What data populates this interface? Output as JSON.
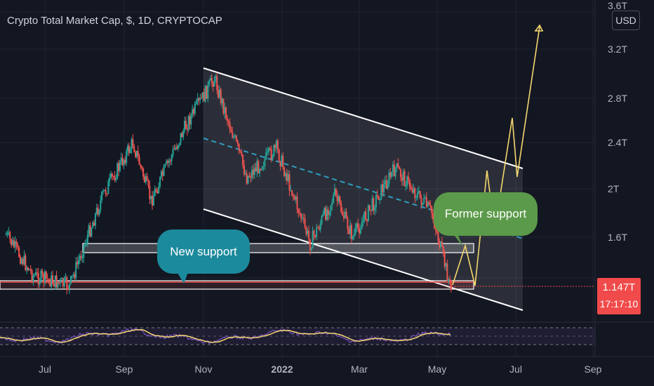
{
  "header": {
    "title": "Crypto Total Market Cap, $, 1D, CRYPTOCAP",
    "currency_button": "USD"
  },
  "price_badge": {
    "price": "1.147T",
    "countdown": "17:17:10"
  },
  "annotations": {
    "former_support": "Former support",
    "new_support": "New support"
  },
  "colors": {
    "background": "#131722",
    "up_candle": "#26a69a",
    "down_candle": "#ef5350",
    "channel": "#ffffff",
    "midline": "#2f9ec2",
    "projection": "#f5d76e",
    "rsi_line": "#7e57c2",
    "rsi_ma": "#f5d76e",
    "price_badge": "#f04a4a",
    "former_support_bubble": "#5b9a4a",
    "new_support_bubble": "#1b8a9c"
  },
  "chart_data": {
    "type": "candlestick",
    "title": "Crypto Total Market Cap, $, 1D, CRYPTOCAP",
    "x_tick_labels": [
      "Jul",
      "Sep",
      "Nov",
      "2022",
      "Mar",
      "May",
      "Jul",
      "Sep"
    ],
    "y_tick_labels": [
      "1.6T",
      "2T",
      "2.4T",
      "2.8T",
      "3.2T",
      "3.6T"
    ],
    "y_unit": "USD",
    "last_price": "1.147T",
    "approx_close_path": [
      {
        "date": "2021-06-01",
        "close_T": 1.62
      },
      {
        "date": "2021-06-22",
        "close_T": 1.3
      },
      {
        "date": "2021-07-20",
        "close_T": 1.22
      },
      {
        "date": "2021-08-15",
        "close_T": 1.95
      },
      {
        "date": "2021-09-07",
        "close_T": 2.4
      },
      {
        "date": "2021-09-21",
        "close_T": 1.9
      },
      {
        "date": "2021-10-20",
        "close_T": 2.6
      },
      {
        "date": "2021-11-09",
        "close_T": 2.97
      },
      {
        "date": "2021-12-04",
        "close_T": 2.1
      },
      {
        "date": "2021-12-27",
        "close_T": 2.35
      },
      {
        "date": "2022-01-22",
        "close_T": 1.55
      },
      {
        "date": "2022-02-10",
        "close_T": 1.95
      },
      {
        "date": "2022-02-24",
        "close_T": 1.6
      },
      {
        "date": "2022-03-29",
        "close_T": 2.18
      },
      {
        "date": "2022-04-26",
        "close_T": 1.8
      },
      {
        "date": "2022-05-12",
        "close_T": 1.147
      }
    ],
    "drawings": {
      "channel": "descending parallel channel from Nov 2021 to Jul 2022",
      "support_zones": [
        "New support",
        "Former support"
      ],
      "projection": "zig-zag path up to about 3.4T"
    },
    "indicator_panel": "RSI with moving average",
    "grid": true
  }
}
